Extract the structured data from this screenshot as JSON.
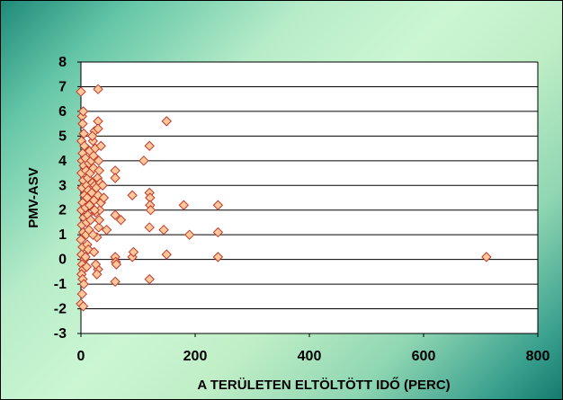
{
  "chart_data": {
    "type": "scatter",
    "title": "",
    "xlabel": "A TERÜLETEN ELTÖLTÖTT IDŐ (PERC)",
    "ylabel": "PMV-ASV",
    "xlim": [
      0,
      800
    ],
    "ylim": [
      -3,
      8
    ],
    "x_ticks": [
      "0",
      "200",
      "400",
      "600",
      "800"
    ],
    "y_ticks": [
      "8",
      "7",
      "6",
      "5",
      "4",
      "3",
      "2",
      "1",
      "0",
      "-1",
      "-2",
      "-3"
    ],
    "grid": "horizontal",
    "legend": "none",
    "colors": {
      "marker_fill": "#ffc89a",
      "marker_stroke": "#c0392b",
      "plot_bg": "#ffffff",
      "frame_bg": "#a8e6c0"
    },
    "series": [
      {
        "points": [
          [
            0,
            6.8
          ],
          [
            2,
            5.8
          ],
          [
            3,
            5.5
          ],
          [
            4,
            6.0
          ],
          [
            5,
            5.1
          ],
          [
            1,
            4.8
          ],
          [
            6,
            4.6
          ],
          [
            3,
            4.3
          ],
          [
            2,
            4.0
          ],
          [
            5,
            3.8
          ],
          [
            1,
            3.5
          ],
          [
            4,
            3.2
          ],
          [
            2,
            2.9
          ],
          [
            6,
            2.6
          ],
          [
            3,
            2.3
          ],
          [
            1,
            2.0
          ],
          [
            5,
            1.7
          ],
          [
            2,
            1.4
          ],
          [
            4,
            1.1
          ],
          [
            0,
            0.8
          ],
          [
            3,
            0.5
          ],
          [
            1,
            0.2
          ],
          [
            6,
            0.0
          ],
          [
            2,
            -0.2
          ],
          [
            4,
            -0.4
          ],
          [
            1,
            -0.6
          ],
          [
            3,
            -0.8
          ],
          [
            5,
            -1.0
          ],
          [
            2,
            -1.4
          ],
          [
            0,
            -1.8
          ],
          [
            4,
            -1.9
          ],
          [
            8,
            4.1
          ],
          [
            9,
            3.6
          ],
          [
            10,
            3.0
          ],
          [
            11,
            2.5
          ],
          [
            8,
            2.1
          ],
          [
            10,
            1.5
          ],
          [
            9,
            1.0
          ],
          [
            11,
            0.6
          ],
          [
            8,
            0.1
          ],
          [
            10,
            -0.3
          ],
          [
            12,
            3.3
          ],
          [
            13,
            2.8
          ],
          [
            14,
            3.9
          ],
          [
            15,
            4.4
          ],
          [
            12,
            1.8
          ],
          [
            14,
            1.2
          ],
          [
            13,
            0.4
          ],
          [
            15,
            2.2
          ],
          [
            16,
            3.5
          ],
          [
            18,
            4.0
          ],
          [
            19,
            2.7
          ],
          [
            20,
            3.1
          ],
          [
            17,
            1.6
          ],
          [
            21,
            4.8
          ],
          [
            22,
            3.7
          ],
          [
            23,
            2.4
          ],
          [
            24,
            5.2
          ],
          [
            25,
            4.5
          ],
          [
            24,
            3.0
          ],
          [
            26,
            1.9
          ],
          [
            27,
            2.9
          ],
          [
            28,
            0.9
          ],
          [
            29,
            3.3
          ],
          [
            30,
            6.9
          ],
          [
            30,
            5.6
          ],
          [
            30,
            5.3
          ],
          [
            31,
            4.0
          ],
          [
            32,
            3.6
          ],
          [
            30,
            2.6
          ],
          [
            33,
            2.0
          ],
          [
            31,
            1.3
          ],
          [
            30,
            -0.4
          ],
          [
            28,
            -0.6
          ],
          [
            32,
            1.6
          ],
          [
            34,
            3.1
          ],
          [
            35,
            2.3
          ],
          [
            35,
            4.6
          ],
          [
            20,
            5.0
          ],
          [
            22,
            4.2
          ],
          [
            24,
            2.0
          ],
          [
            21,
            1.0
          ],
          [
            23,
            0.3
          ],
          [
            26,
            -0.2
          ],
          [
            38,
            3.0
          ],
          [
            40,
            2.5
          ],
          [
            45,
            1.2
          ],
          [
            60,
            3.6
          ],
          [
            60,
            3.3
          ],
          [
            60,
            1.8
          ],
          [
            60,
            0.1
          ],
          [
            61,
            -0.1
          ],
          [
            62,
            -0.2
          ],
          [
            60,
            -0.9
          ],
          [
            70,
            1.6
          ],
          [
            90,
            2.6
          ],
          [
            90,
            0.1
          ],
          [
            92,
            0.3
          ],
          [
            110,
            4.0
          ],
          [
            120,
            4.6
          ],
          [
            120,
            2.7
          ],
          [
            121,
            2.5
          ],
          [
            121,
            2.2
          ],
          [
            122,
            2.0
          ],
          [
            120,
            1.3
          ],
          [
            120,
            -0.8
          ],
          [
            150,
            5.6
          ],
          [
            145,
            1.2
          ],
          [
            150,
            0.2
          ],
          [
            180,
            2.2
          ],
          [
            190,
            1.0
          ],
          [
            240,
            2.2
          ],
          [
            240,
            1.1
          ],
          [
            240,
            0.1
          ],
          [
            710,
            0.1
          ]
        ]
      }
    ]
  }
}
